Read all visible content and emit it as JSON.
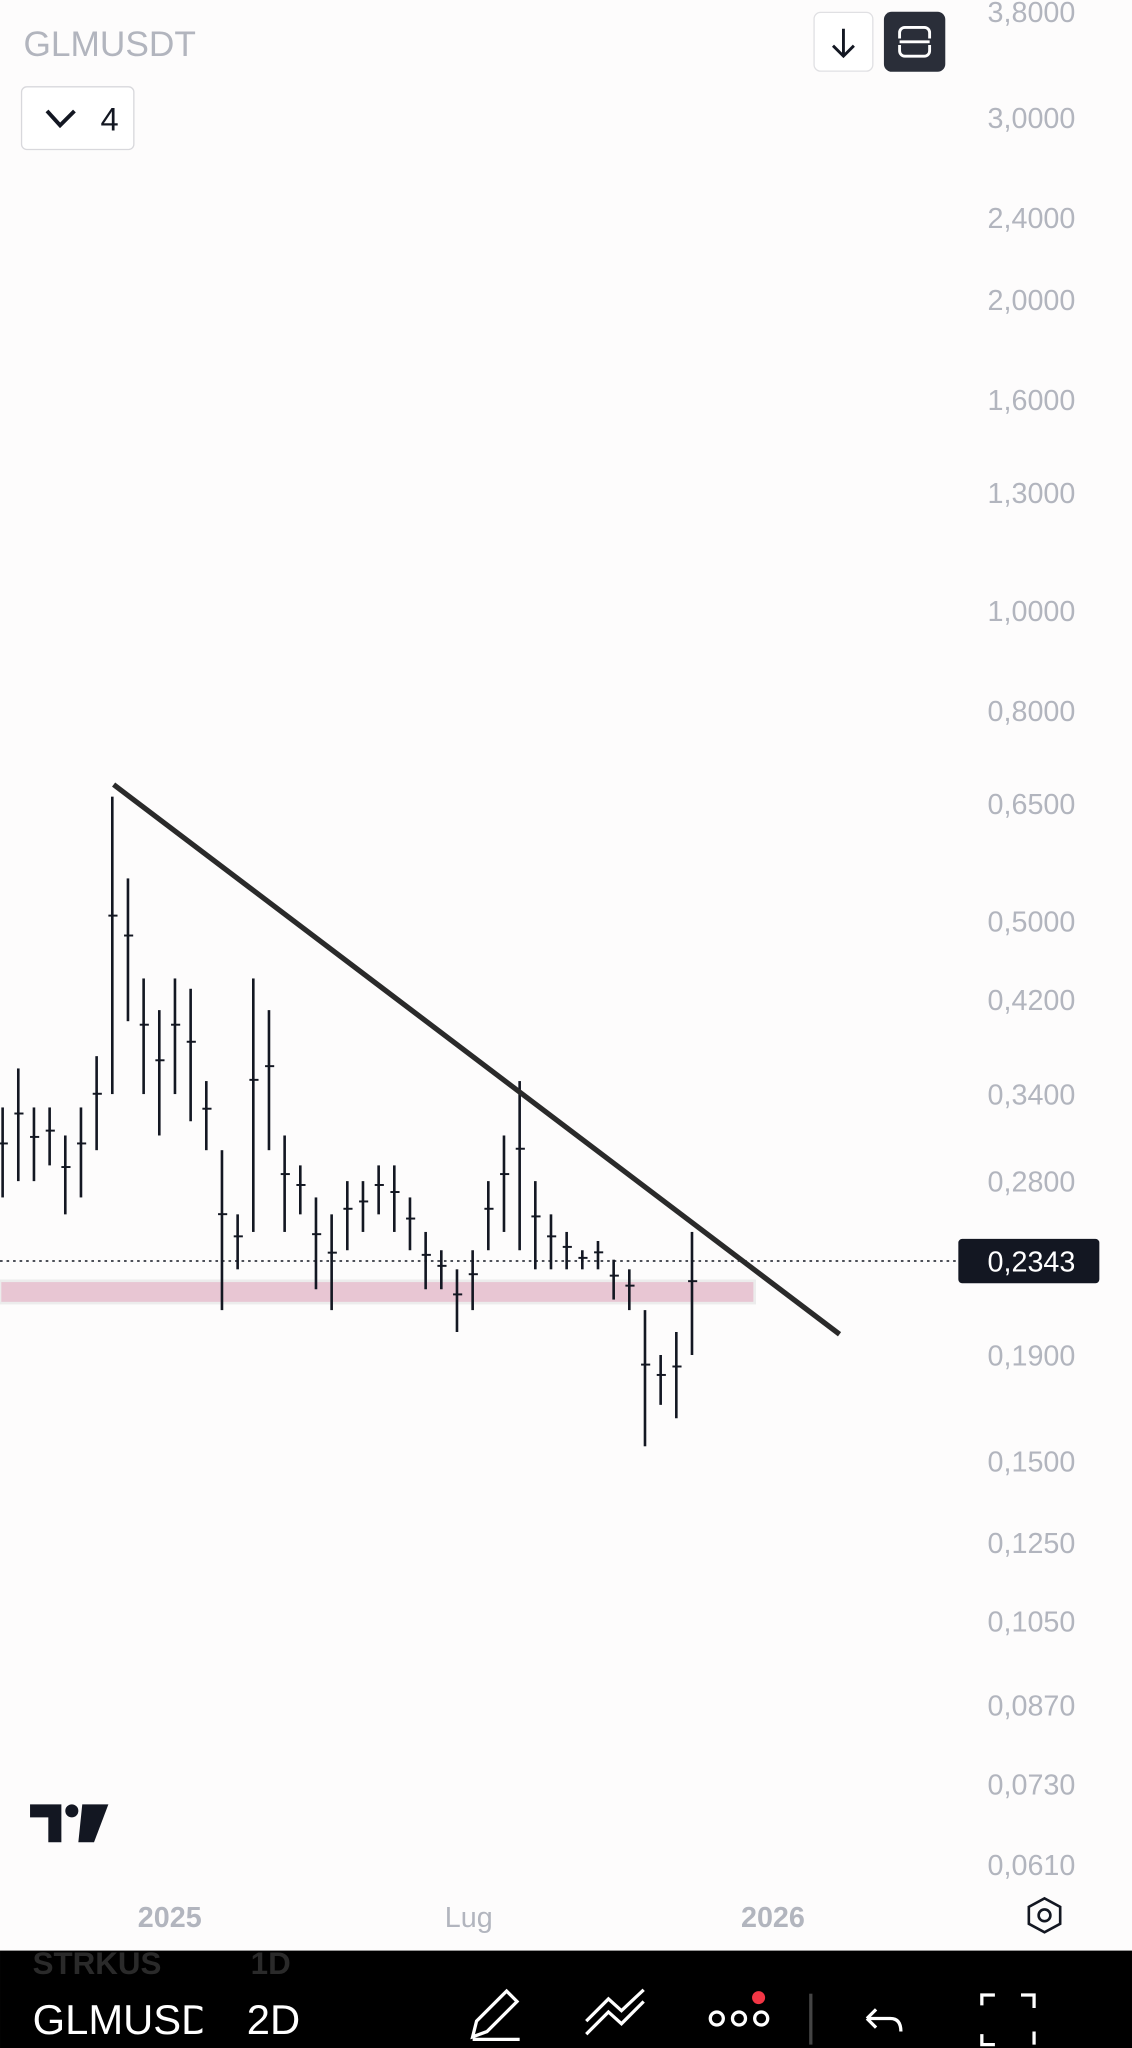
{
  "header": {
    "symbol": "GLMUSDT",
    "indicator_count": "4"
  },
  "chart_data": {
    "type": "range",
    "log_scale": true,
    "ylim": [
      0.061,
      3.8
    ],
    "yticks": [
      {
        "value": 3.8,
        "label": "3,8000"
      },
      {
        "value": 3.0,
        "label": "3,0000"
      },
      {
        "value": 2.4,
        "label": "2,4000"
      },
      {
        "value": 2.0,
        "label": "2,0000"
      },
      {
        "value": 1.6,
        "label": "1,6000"
      },
      {
        "value": 1.3,
        "label": "1,3000"
      },
      {
        "value": 1.0,
        "label": "1,0000"
      },
      {
        "value": 0.8,
        "label": "0,8000"
      },
      {
        "value": 0.65,
        "label": "0,6500"
      },
      {
        "value": 0.5,
        "label": "0,5000"
      },
      {
        "value": 0.42,
        "label": "0,4200"
      },
      {
        "value": 0.34,
        "label": "0,3400"
      },
      {
        "value": 0.28,
        "label": "0,2800"
      },
      {
        "value": 0.19,
        "label": "0,1900"
      },
      {
        "value": 0.15,
        "label": "0,1500"
      },
      {
        "value": 0.125,
        "label": "0,1250"
      },
      {
        "value": 0.105,
        "label": "0,1050"
      },
      {
        "value": 0.087,
        "label": "0,0870"
      },
      {
        "value": 0.073,
        "label": "0,0730"
      },
      {
        "value": 0.061,
        "label": "0,0610"
      }
    ],
    "xticks": [
      "2025",
      "Lug",
      "2026"
    ],
    "color": "#131722",
    "high": [
      0.33,
      0.36,
      0.33,
      0.33,
      0.31,
      0.33,
      0.37,
      0.66,
      0.55,
      0.44,
      0.41,
      0.44,
      0.43,
      0.35,
      0.3,
      0.26,
      0.44,
      0.41,
      0.31,
      0.29,
      0.27,
      0.26,
      0.28,
      0.28,
      0.29,
      0.29,
      0.27,
      0.25,
      0.24,
      0.23,
      0.24,
      0.28,
      0.31,
      0.35,
      0.28,
      0.26,
      0.25,
      0.24,
      0.245,
      0.235,
      0.23,
      0.21,
      0.19,
      0.2,
      0.25
    ],
    "low": [
      0.27,
      0.28,
      0.28,
      0.29,
      0.26,
      0.27,
      0.3,
      0.34,
      0.4,
      0.34,
      0.31,
      0.34,
      0.32,
      0.3,
      0.21,
      0.23,
      0.25,
      0.3,
      0.25,
      0.26,
      0.22,
      0.21,
      0.24,
      0.25,
      0.26,
      0.25,
      0.24,
      0.22,
      0.22,
      0.2,
      0.21,
      0.24,
      0.25,
      0.24,
      0.23,
      0.23,
      0.23,
      0.23,
      0.23,
      0.215,
      0.21,
      0.155,
      0.17,
      0.165,
      0.19
    ],
    "last_price": {
      "value": 0.2343,
      "label": "0,2343"
    },
    "trendline": [
      0.678,
      0.199
    ],
    "zone": [
      0.2133,
      0.2242
    ]
  },
  "bottom_bar": {
    "prev_symbol": "STRKUS",
    "prev_interval": "1D",
    "symbol": "GLMUSD",
    "interval": "2D"
  }
}
